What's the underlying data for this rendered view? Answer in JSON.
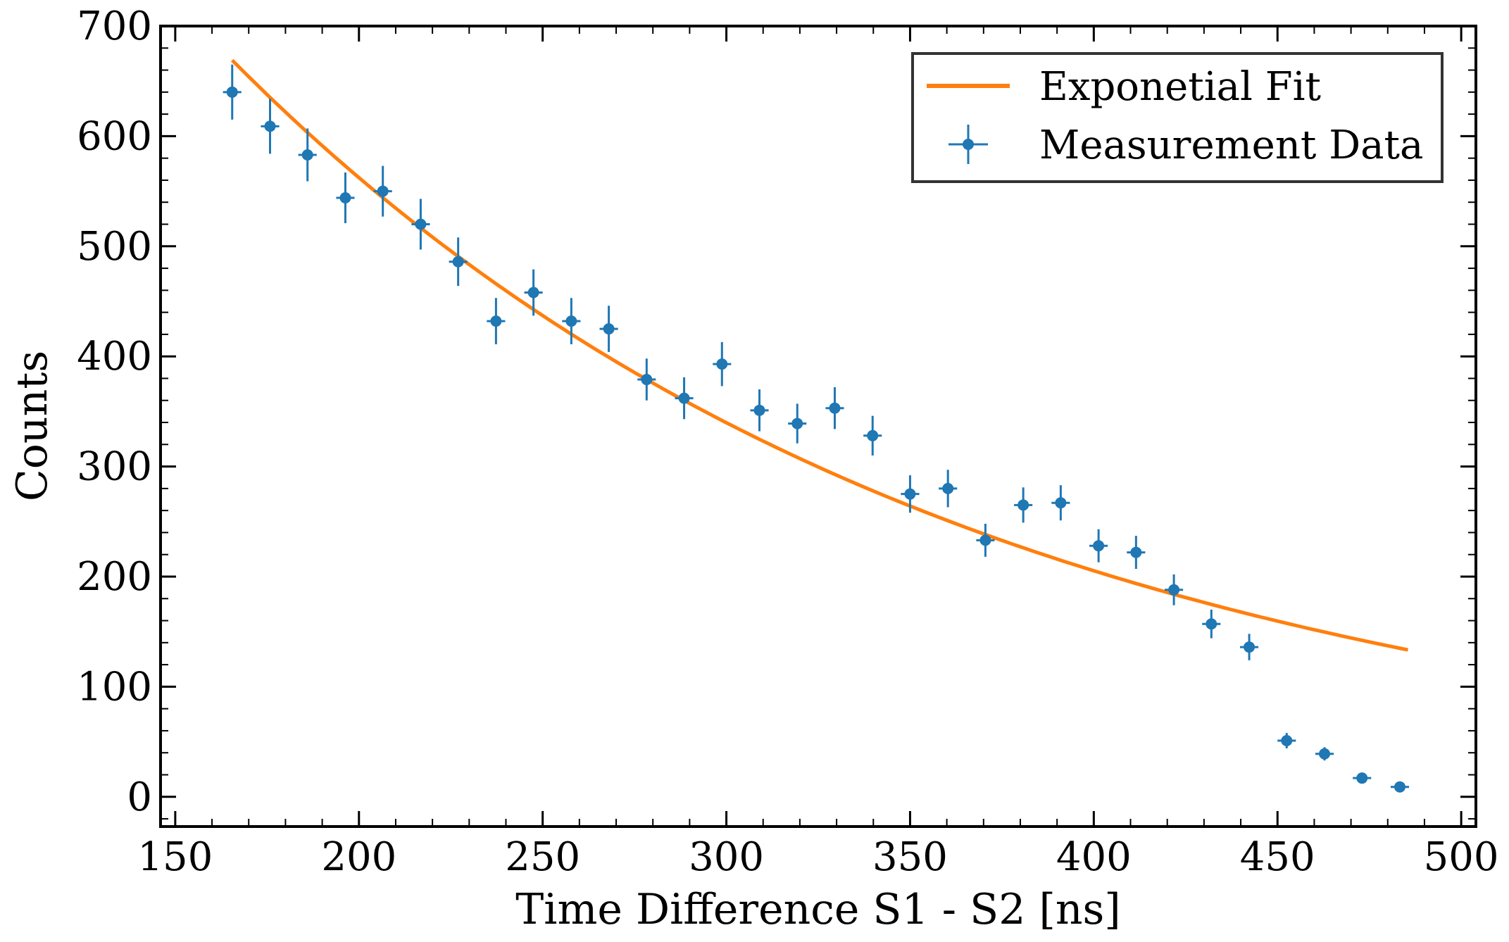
{
  "chart_data": {
    "type": "scatter",
    "title": "",
    "xlabel": "Time Difference S1 - S2 [ns]",
    "ylabel": "Counts",
    "xlim": [
      146,
      504
    ],
    "ylim": [
      -27,
      700
    ],
    "xticks": [
      150,
      200,
      250,
      300,
      350,
      400,
      450,
      500
    ],
    "yticks": [
      0,
      100,
      200,
      300,
      400,
      500,
      600,
      700
    ],
    "grid": false,
    "legend": {
      "location": "upper right",
      "entries": [
        "Exponetial Fit",
        "Measurement Data"
      ]
    },
    "series": [
      {
        "name": "Measurement Data",
        "kind": "errorbar",
        "color": "#1f77b4",
        "x": [
          165.5,
          175.8,
          186.0,
          196.3,
          206.5,
          216.8,
          227.0,
          237.3,
          247.5,
          257.8,
          268.0,
          278.3,
          288.5,
          298.8,
          309.0,
          319.3,
          329.5,
          339.8,
          350.0,
          360.3,
          370.5,
          380.8,
          391.0,
          401.3,
          411.5,
          421.8,
          432.0,
          442.3,
          452.5,
          462.8,
          473.0,
          483.3
        ],
        "y": [
          640,
          609,
          583,
          544,
          550,
          520,
          486,
          432,
          458,
          432,
          425,
          379,
          362,
          393,
          351,
          339,
          353,
          328,
          275,
          280,
          233,
          265,
          267,
          228,
          222,
          188,
          157,
          136,
          51,
          39,
          17,
          9
        ],
        "yerr": [
          25,
          25,
          24,
          23,
          23,
          23,
          22,
          21,
          21,
          21,
          21,
          19,
          19,
          20,
          19,
          18,
          19,
          18,
          17,
          17,
          15,
          16,
          16,
          15,
          15,
          14,
          13,
          12,
          7,
          6,
          4,
          3
        ],
        "xerr": 2.5
      },
      {
        "name": "Exponetial Fit",
        "kind": "line",
        "color": "#ff7f0e",
        "amplitude": 669,
        "x0": 165.5,
        "decay_constant_ns": 198.5,
        "x_range": [
          165.5,
          485.5
        ]
      }
    ]
  }
}
